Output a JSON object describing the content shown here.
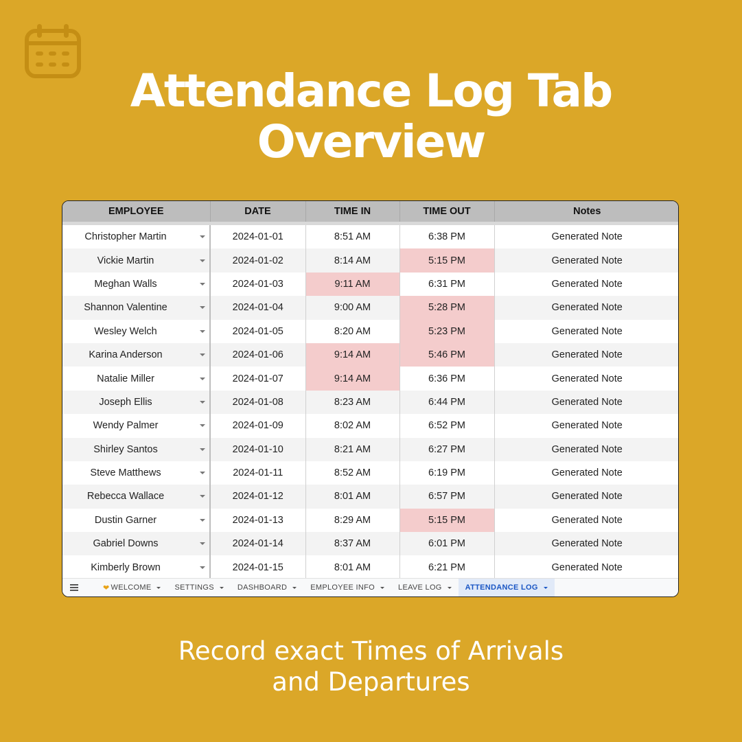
{
  "title": {
    "line1": "Attendance Log Tab",
    "line2": "Overview"
  },
  "subtitle": {
    "line1": "Record exact Times of Arrivals",
    "line2": "and Departures"
  },
  "colors": {
    "background": "#DBA728",
    "late_highlight": "#F4CCCC",
    "active_tab": "#1A56C4"
  },
  "sheet": {
    "headers": [
      "EMPLOYEE",
      "DATE",
      "TIME IN",
      "TIME OUT",
      "Notes"
    ],
    "rows": [
      {
        "employee": "Christopher Martin",
        "date": "2024-01-01",
        "time_in": "8:51 AM",
        "time_out": "6:38 PM",
        "notes": "Generated Note",
        "late_in": false,
        "early_out": false
      },
      {
        "employee": "Vickie Martin",
        "date": "2024-01-02",
        "time_in": "8:14 AM",
        "time_out": "5:15 PM",
        "notes": "Generated Note",
        "late_in": false,
        "early_out": true
      },
      {
        "employee": "Meghan Walls",
        "date": "2024-01-03",
        "time_in": "9:11 AM",
        "time_out": "6:31 PM",
        "notes": "Generated Note",
        "late_in": true,
        "early_out": false
      },
      {
        "employee": "Shannon Valentine",
        "date": "2024-01-04",
        "time_in": "9:00 AM",
        "time_out": "5:28 PM",
        "notes": "Generated Note",
        "late_in": false,
        "early_out": true
      },
      {
        "employee": "Wesley Welch",
        "date": "2024-01-05",
        "time_in": "8:20 AM",
        "time_out": "5:23 PM",
        "notes": "Generated Note",
        "late_in": false,
        "early_out": true
      },
      {
        "employee": "Karina Anderson",
        "date": "2024-01-06",
        "time_in": "9:14 AM",
        "time_out": "5:46 PM",
        "notes": "Generated Note",
        "late_in": true,
        "early_out": true
      },
      {
        "employee": "Natalie Miller",
        "date": "2024-01-07",
        "time_in": "9:14 AM",
        "time_out": "6:36 PM",
        "notes": "Generated Note",
        "late_in": true,
        "early_out": false
      },
      {
        "employee": "Joseph Ellis",
        "date": "2024-01-08",
        "time_in": "8:23 AM",
        "time_out": "6:44 PM",
        "notes": "Generated Note",
        "late_in": false,
        "early_out": false
      },
      {
        "employee": "Wendy Palmer",
        "date": "2024-01-09",
        "time_in": "8:02 AM",
        "time_out": "6:52 PM",
        "notes": "Generated Note",
        "late_in": false,
        "early_out": false
      },
      {
        "employee": "Shirley Santos",
        "date": "2024-01-10",
        "time_in": "8:21 AM",
        "time_out": "6:27 PM",
        "notes": "Generated Note",
        "late_in": false,
        "early_out": false
      },
      {
        "employee": "Steve Matthews",
        "date": "2024-01-11",
        "time_in": "8:52 AM",
        "time_out": "6:19 PM",
        "notes": "Generated Note",
        "late_in": false,
        "early_out": false
      },
      {
        "employee": "Rebecca Wallace",
        "date": "2024-01-12",
        "time_in": "8:01 AM",
        "time_out": "6:57 PM",
        "notes": "Generated Note",
        "late_in": false,
        "early_out": false
      },
      {
        "employee": "Dustin Garner",
        "date": "2024-01-13",
        "time_in": "8:29 AM",
        "time_out": "5:15 PM",
        "notes": "Generated Note",
        "late_in": false,
        "early_out": true
      },
      {
        "employee": "Gabriel Downs",
        "date": "2024-01-14",
        "time_in": "8:37 AM",
        "time_out": "6:01 PM",
        "notes": "Generated Note",
        "late_in": false,
        "early_out": false
      },
      {
        "employee": "Kimberly Brown",
        "date": "2024-01-15",
        "time_in": "8:01 AM",
        "time_out": "6:21 PM",
        "notes": "Generated Note",
        "late_in": false,
        "early_out": false
      }
    ]
  },
  "tabs": [
    {
      "label": "WELCOME",
      "icon": "heart-icon",
      "active": false
    },
    {
      "label": "SETTINGS",
      "active": false
    },
    {
      "label": "DASHBOARD",
      "active": false
    },
    {
      "label": "EMPLOYEE INFO",
      "active": false
    },
    {
      "label": "LEAVE LOG",
      "active": false
    },
    {
      "label": "ATTENDANCE LOG",
      "active": true
    }
  ]
}
